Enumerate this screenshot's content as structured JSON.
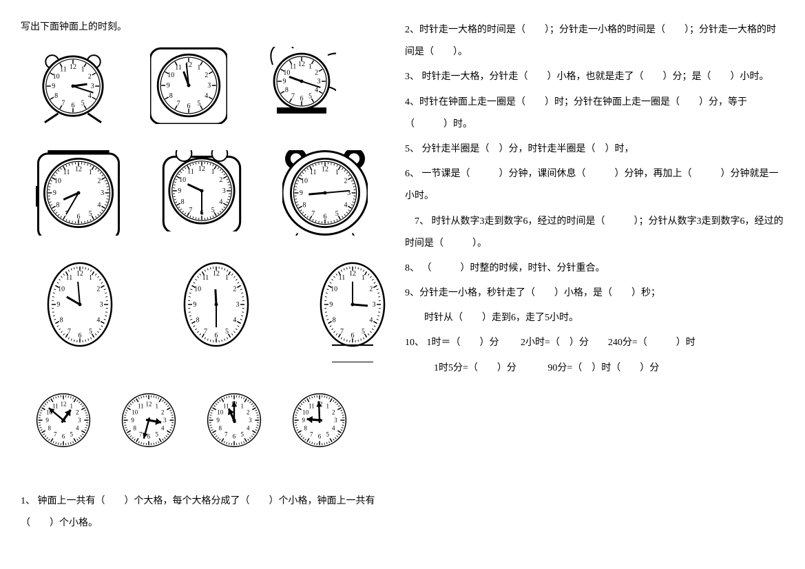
{
  "title": "写出下面钟面上的时刻。",
  "clocks": {
    "row1": [
      {
        "hour_angle": 82,
        "minute_angle": 108,
        "size": 108,
        "style": "alarm",
        "oval": false
      },
      {
        "hour_angle": 340,
        "minute_angle": 354,
        "size": 112,
        "style": "square",
        "oval": false
      },
      {
        "hour_angle": 290,
        "minute_angle": 108,
        "size": 100,
        "style": "animal1",
        "oval": false
      }
    ],
    "row2": [
      {
        "hour_angle": 246,
        "minute_angle": 210,
        "size": 124,
        "style": "dive",
        "oval": false
      },
      {
        "hour_angle": 295,
        "minute_angle": 180,
        "size": 118,
        "style": "frog",
        "oval": false
      },
      {
        "hour_angle": 265,
        "minute_angle": 85,
        "size": 124,
        "style": "bear",
        "oval": false
      }
    ],
    "row3": [
      {
        "hour_angle": 300,
        "minute_angle": 355,
        "size": 128,
        "style": "oval",
        "oval": true
      },
      {
        "hour_angle": 357,
        "minute_angle": 180,
        "size": 128,
        "style": "oval",
        "oval": true
      },
      {
        "hour_angle": 95,
        "minute_angle": 0,
        "size": 128,
        "style": "oval",
        "oval": true
      }
    ],
    "row4": [
      {
        "hour_angle": 35,
        "minute_angle": 310,
        "size": 96,
        "style": "plain",
        "oval": false
      },
      {
        "hour_angle": 100,
        "minute_angle": 195,
        "size": 96,
        "style": "plain",
        "oval": false
      },
      {
        "hour_angle": 335,
        "minute_angle": 0,
        "size": 96,
        "style": "plain",
        "oval": false
      },
      {
        "hour_angle": 275,
        "minute_angle": 358,
        "size": 96,
        "style": "plain",
        "oval": false
      }
    ]
  },
  "questions": {
    "q1": "1、 钟面上一共有（　　）个大格，每个大格分成了（　　）个小格，钟面上一共有（　　）个小格。",
    "q2": "2、时针走一大格的时间是（　　）；分针走一小格的时间是（　　）；分针走一大格的时间是（　　）。",
    "q3": "3、 时针走一大格，分针走（　　）小格，也就是走了（　　）分；是（　　）小时。",
    "q4": "4、时针在钟面上走一圈是（　　）时；分针在钟面上走一圈是（　　）分，等于（　　　）时。",
    "q5": "5、 分针走半圈是（　）分，时针走半圈是（　）时，",
    "q6": "6、 一节课是（　　　）分钟，课间休息（　　　）分钟，再加上（　　　）分钟就是一小时。",
    "q7": "7、 时针从数字3走到数字6，经过的时间是（　　　）；分针从数字3走到数字6，经过的时间是（　　　）。",
    "q8": "8、 （　　　）时整的时候，时针、分针重合。",
    "q9a": "9、分针走一小格，秒针走了（　　）小格，是（　　）秒；",
    "q9b": "时针从（　　）走到6，走了5小时。",
    "q10a": "10、 1时＝（　　）分　　 2小时=（　）分　　240分=（　　　）时",
    "q10b": "1时5分=（　　）分　　　 90分=（　）时（　　）分"
  },
  "styling": {
    "page_bg": "#ffffff",
    "text_color": "#000000",
    "font_family": "SimSun",
    "font_size_body": 14,
    "line_height": 2.3,
    "clock_stroke": "#000000",
    "clock_fill": "#ffffff",
    "number_font_size": 9
  }
}
